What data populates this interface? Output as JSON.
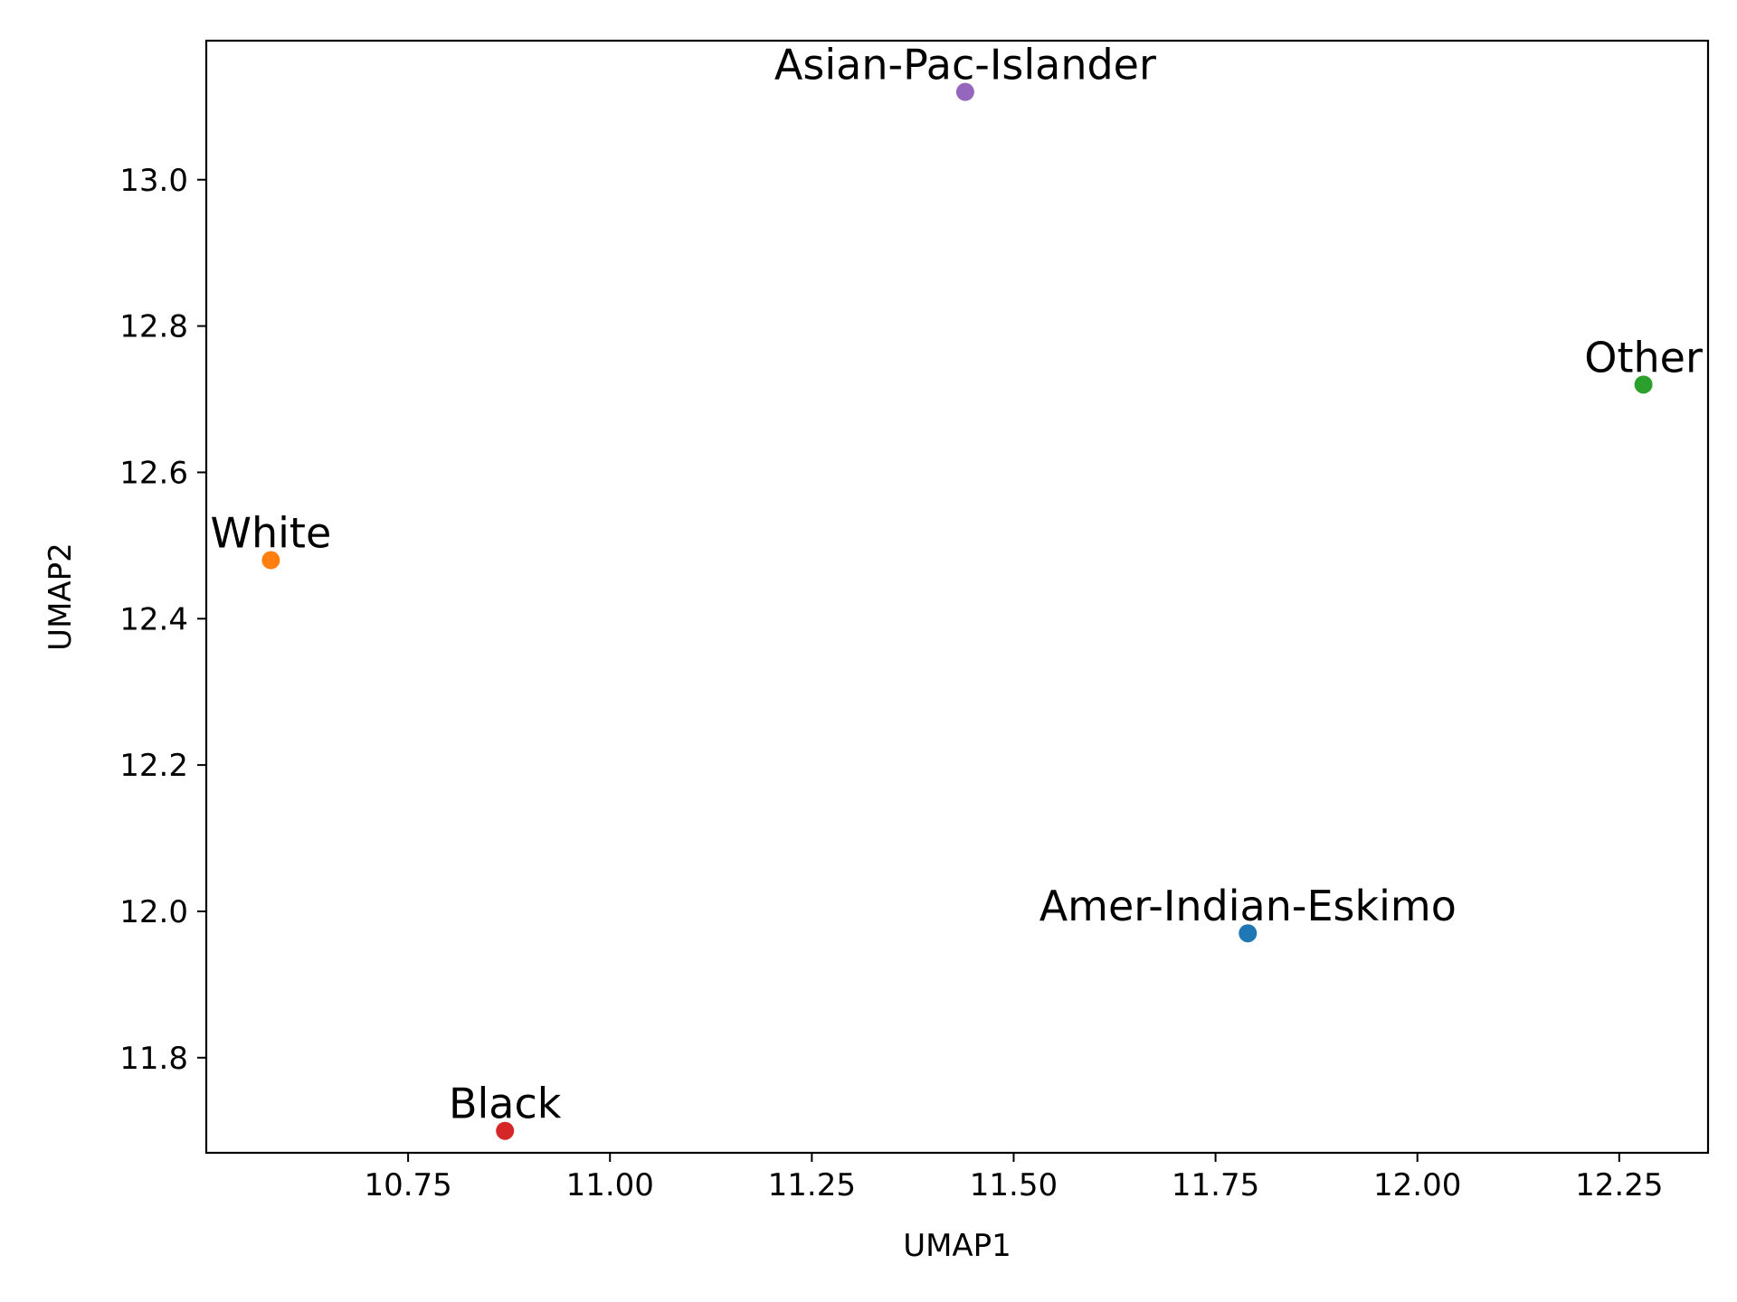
{
  "chart_data": {
    "type": "scatter",
    "title": "",
    "xlabel": "UMAP1",
    "ylabel": "UMAP2",
    "xlim": [
      10.5,
      12.36
    ],
    "ylim": [
      11.67,
      13.19
    ],
    "xticks": [
      10.75,
      11.0,
      11.25,
      11.5,
      11.75,
      12.0,
      12.25
    ],
    "xtick_labels": [
      "10.75",
      "11.00",
      "11.25",
      "11.50",
      "11.75",
      "12.00",
      "12.25"
    ],
    "yticks": [
      11.8,
      12.0,
      12.2,
      12.4,
      12.6,
      12.8,
      13.0
    ],
    "ytick_labels": [
      "11.8",
      "12.0",
      "12.2",
      "12.4",
      "12.6",
      "12.8",
      "13.0"
    ],
    "grid": false,
    "legend": "none",
    "points": [
      {
        "label": "Amer-Indian-Eskimo",
        "x": 11.79,
        "y": 11.97,
        "color": "#1f77b4"
      },
      {
        "label": "White",
        "x": 10.58,
        "y": 12.48,
        "color": "#ff7f0e"
      },
      {
        "label": "Other",
        "x": 12.28,
        "y": 12.72,
        "color": "#2ca02c"
      },
      {
        "label": "Black",
        "x": 10.87,
        "y": 11.7,
        "color": "#d62728"
      },
      {
        "label": "Asian-Pac-Islander",
        "x": 11.44,
        "y": 13.12,
        "color": "#9467bd"
      }
    ]
  }
}
